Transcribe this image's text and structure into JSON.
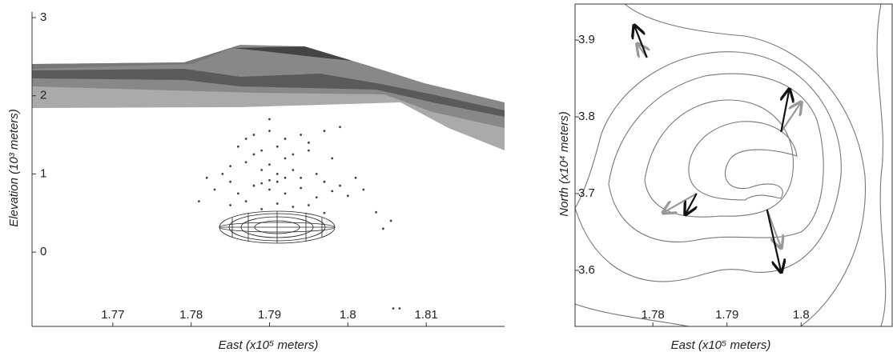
{
  "chart_data": [
    {
      "type": "scatter",
      "x_label": "East (x10⁵ meters)",
      "y_label": "Elevation (10³ meters)",
      "xlim": [
        1.76,
        1.82
      ],
      "xticks": [
        1.77,
        1.78,
        1.79,
        1.8,
        1.81
      ],
      "ylim": [
        -0.95,
        3.02
      ],
      "yticks": [
        0,
        1,
        2,
        3
      ],
      "color": "#444",
      "x": [
        1.788,
        1.79,
        1.792,
        1.794,
        1.797,
        1.799,
        1.786,
        1.789,
        1.791,
        1.793,
        1.795,
        1.798,
        1.785,
        1.787,
        1.789,
        1.79,
        1.791,
        1.792,
        1.79,
        1.789,
        1.791,
        1.793,
        1.794,
        1.796,
        1.797,
        1.799,
        1.801,
        1.783,
        1.785,
        1.786,
        1.788,
        1.79,
        1.792,
        1.794,
        1.796,
        1.798,
        1.8,
        1.785,
        1.787,
        1.789,
        1.791,
        1.793,
        1.795,
        1.797,
        1.784,
        1.782,
        1.781,
        1.802,
        1.788,
        1.792,
        1.79,
        1.795,
        1.787,
        1.8036,
        1.8055,
        1.8045,
        1.8058,
        1.8066
      ],
      "values": [
        1.5,
        1.55,
        1.45,
        1.5,
        1.55,
        1.6,
        1.35,
        1.3,
        1.35,
        1.25,
        1.3,
        1.2,
        1.1,
        1.15,
        1.05,
        1.12,
        1.0,
        0.95,
        0.92,
        0.88,
        0.9,
        1.05,
        0.95,
        1.0,
        0.9,
        0.85,
        0.95,
        0.8,
        0.9,
        0.75,
        0.85,
        0.8,
        0.75,
        0.82,
        0.7,
        0.78,
        0.72,
        0.6,
        0.65,
        0.55,
        0.62,
        0.58,
        0.6,
        0.5,
        1.0,
        0.95,
        0.65,
        0.8,
        1.25,
        1.2,
        1.7,
        1.4,
        1.45,
        0.51,
        0.4,
        0.3,
        -0.72,
        -0.72
      ]
    },
    {
      "type": "quiver",
      "x_label": "East (x10⁵ meters)",
      "y_label": "North (x10⁴ meters)",
      "xlim": [
        1.7695,
        1.8124
      ],
      "xticks": [
        1.78,
        1.79,
        1.8
      ],
      "ylim": [
        3.527,
        3.947
      ],
      "yticks": [
        3.6,
        3.7,
        3.8,
        3.9
      ],
      "series": [
        {
          "color": "#999",
          "x": [
            1.7792,
            1.7973,
            1.7859,
            1.7954
          ],
          "values": [
            3.8772,
            3.7803,
            3.7001,
            3.6793
          ],
          "x_end": [
            1.7779,
            1.8,
            1.7814,
            1.7973
          ],
          "values_end": [
            3.8949,
            3.8189,
            3.6751,
            3.6293
          ]
        },
        {
          "color": "#111",
          "x": [
            1.7792,
            1.7973,
            1.7859,
            1.7954
          ],
          "values": [
            3.8772,
            3.7803,
            3.7001,
            3.6793
          ],
          "x_end": [
            1.7775,
            1.7984,
            1.7844,
            1.7973
          ],
          "values_end": [
            3.9189,
            3.8355,
            3.673,
            3.598
          ]
        }
      ]
    }
  ]
}
